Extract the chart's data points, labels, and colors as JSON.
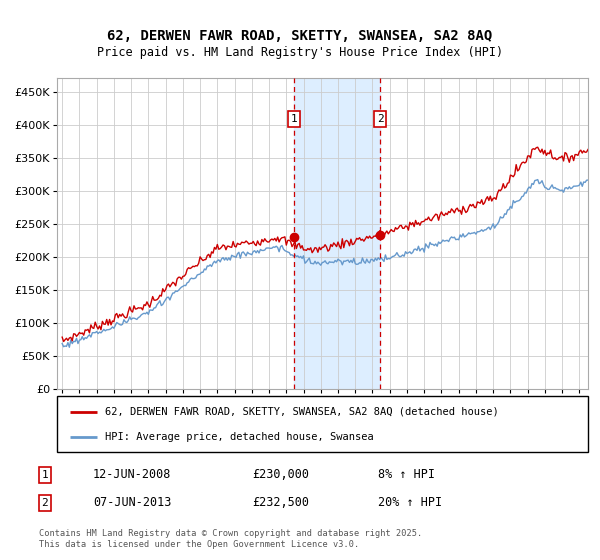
{
  "title": "62, DERWEN FAWR ROAD, SKETTY, SWANSEA, SA2 8AQ",
  "subtitle": "Price paid vs. HM Land Registry's House Price Index (HPI)",
  "legend_line1": "62, DERWEN FAWR ROAD, SKETTY, SWANSEA, SA2 8AQ (detached house)",
  "legend_line2": "HPI: Average price, detached house, Swansea",
  "footnote1": "Contains HM Land Registry data © Crown copyright and database right 2025.",
  "footnote2": "This data is licensed under the Open Government Licence v3.0.",
  "sale1_date": "12-JUN-2008",
  "sale1_price": "£230,000",
  "sale1_hpi": "8% ↑ HPI",
  "sale2_date": "07-JUN-2013",
  "sale2_price": "£232,500",
  "sale2_hpi": "20% ↑ HPI",
  "sale1_label": "1",
  "sale2_label": "2",
  "red_line_color": "#cc0000",
  "blue_line_color": "#6699cc",
  "shade_color": "#ddeeff",
  "dashed_color": "#cc0000",
  "grid_color": "#cccccc",
  "background_color": "#ffffff",
  "ylim": [
    0,
    470000
  ],
  "yticks": [
    0,
    50000,
    100000,
    150000,
    200000,
    250000,
    300000,
    350000,
    400000,
    450000
  ],
  "xlim_start": 1994.7,
  "xlim_end": 2025.5,
  "sale1_x": 2008.44,
  "sale1_y": 230000,
  "sale2_x": 2013.44,
  "sale2_y": 232500
}
